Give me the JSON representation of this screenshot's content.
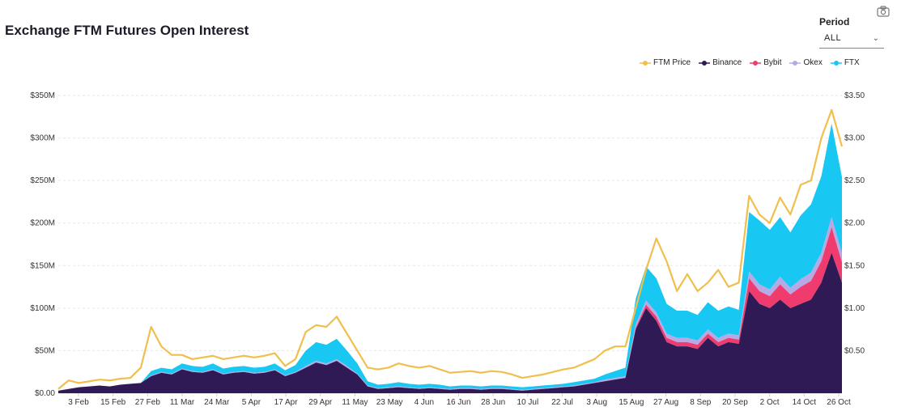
{
  "header": {
    "title": "Exchange FTM Futures Open Interest"
  },
  "period": {
    "label": "Period",
    "value": "ALL"
  },
  "icons": {
    "camera": "camera-icon",
    "chevron": "chevron-down-icon"
  },
  "chart_data": {
    "type": "area",
    "legend_position": "top-right",
    "grid": true,
    "x_ticks": [
      "3 Feb",
      "15 Feb",
      "27 Feb",
      "11 Mar",
      "24 Mar",
      "5 Apr",
      "17 Apr",
      "29 Apr",
      "11 May",
      "23 May",
      "4 Jun",
      "16 Jun",
      "28 Jun",
      "10 Jul",
      "22 Jul",
      "3 Aug",
      "15 Aug",
      "27 Aug",
      "8 Sep",
      "20 Sep",
      "2 Oct",
      "14 Oct",
      "26 Oct"
    ],
    "y_left_ticks": [
      "$0.00",
      "$50M",
      "$100M",
      "$150M",
      "$200M",
      "$250M",
      "$300M",
      "$350M"
    ],
    "y_right_ticks": [
      "$0.50",
      "$1.00",
      "$1.50",
      "$2.00",
      "$2.50",
      "$3.00",
      "$3.50"
    ],
    "y_left_range": [
      0,
      350
    ],
    "y_right_range": [
      0,
      3.5
    ],
    "x": [
      "Jan 24",
      "Jan 27",
      "Jan 30",
      "Feb 3",
      "Feb 7",
      "Feb 11",
      "Feb 15",
      "Feb 19",
      "Feb 23",
      "Feb 27",
      "Mar 3",
      "Mar 7",
      "Mar 11",
      "Mar 15",
      "Mar 19",
      "Mar 24",
      "Mar 28",
      "Apr 1",
      "Apr 5",
      "Apr 9",
      "Apr 13",
      "Apr 17",
      "Apr 21",
      "Apr 25",
      "Apr 29",
      "May 3",
      "May 7",
      "May 11",
      "May 15",
      "May 19",
      "May 23",
      "May 27",
      "May 31",
      "Jun 4",
      "Jun 8",
      "Jun 12",
      "Jun 16",
      "Jun 20",
      "Jun 24",
      "Jun 28",
      "Jul 2",
      "Jul 6",
      "Jul 10",
      "Jul 14",
      "Jul 18",
      "Jul 22",
      "Jul 26",
      "Jul 30",
      "Aug 3",
      "Aug 7",
      "Aug 11",
      "Aug 15",
      "Aug 19",
      "Aug 23",
      "Aug 27",
      "Aug 30",
      "Sep 2",
      "Sep 5",
      "Sep 8",
      "Sep 11",
      "Sep 14",
      "Sep 17",
      "Sep 20",
      "Sep 23",
      "Sep 26",
      "Sep 29",
      "Oct 2",
      "Oct 4",
      "Oct 7",
      "Oct 10",
      "Oct 14",
      "Oct 17",
      "Oct 20",
      "Oct 23",
      "Oct 26",
      "Oct 28",
      "Oct 29"
    ],
    "series": [
      {
        "name": "FTM Price",
        "kind": "line",
        "axis": "right",
        "color": "#f0bf4c",
        "values": [
          0.05,
          0.15,
          0.12,
          0.14,
          0.16,
          0.15,
          0.17,
          0.18,
          0.3,
          0.78,
          0.55,
          0.45,
          0.45,
          0.4,
          0.42,
          0.44,
          0.4,
          0.42,
          0.44,
          0.42,
          0.44,
          0.47,
          0.32,
          0.4,
          0.72,
          0.8,
          0.78,
          0.9,
          0.7,
          0.5,
          0.3,
          0.28,
          0.3,
          0.35,
          0.32,
          0.3,
          0.32,
          0.28,
          0.24,
          0.25,
          0.26,
          0.24,
          0.26,
          0.25,
          0.22,
          0.18,
          0.2,
          0.22,
          0.25,
          0.28,
          0.3,
          0.35,
          0.4,
          0.5,
          0.55,
          0.55,
          1.0,
          1.45,
          1.82,
          1.55,
          1.2,
          1.4,
          1.2,
          1.3,
          1.45,
          1.25,
          1.3,
          2.32,
          2.1,
          2.0,
          2.3,
          2.1,
          2.45,
          2.5,
          3.0,
          3.33,
          2.9
        ]
      },
      {
        "name": "Binance",
        "kind": "area",
        "axis": "left",
        "color": "#2f1a55",
        "values": [
          3,
          5,
          7,
          8,
          9,
          8,
          10,
          11,
          12,
          20,
          24,
          22,
          28,
          25,
          24,
          27,
          22,
          24,
          25,
          23,
          24,
          27,
          20,
          24,
          30,
          36,
          33,
          38,
          30,
          22,
          8,
          5,
          6,
          7,
          6,
          5,
          6,
          5,
          4,
          5,
          5,
          4,
          5,
          5,
          4,
          3,
          4,
          5,
          6,
          7,
          8,
          10,
          12,
          14,
          16,
          18,
          75,
          100,
          85,
          60,
          55,
          55,
          52,
          65,
          55,
          60,
          58,
          120,
          105,
          100,
          110,
          100,
          105,
          110,
          130,
          165,
          130
        ]
      },
      {
        "name": "Bybit",
        "kind": "area",
        "axis": "left",
        "color": "#ef3b6e",
        "values": [
          0,
          0,
          0,
          0,
          0,
          0,
          0,
          0,
          0,
          0,
          0,
          0,
          0,
          0,
          0,
          0,
          0,
          0,
          0,
          0,
          0,
          0,
          0,
          0,
          0,
          0,
          0,
          0,
          0,
          0,
          0,
          0,
          0,
          0,
          0,
          0,
          0,
          0,
          0,
          0,
          0,
          0,
          0,
          0,
          0,
          0,
          0,
          0,
          0,
          0,
          0,
          0,
          0,
          0,
          0,
          0,
          2,
          4,
          5,
          5,
          5,
          5,
          5,
          5,
          5,
          5,
          5,
          15,
          15,
          14,
          18,
          16,
          20,
          22,
          25,
          30,
          24
        ]
      },
      {
        "name": "Okex",
        "kind": "area",
        "axis": "left",
        "color": "#b7a9e6",
        "values": [
          0,
          0,
          0,
          0,
          0,
          0,
          0,
          0,
          0,
          1,
          1,
          1,
          1,
          1,
          1,
          1,
          1,
          1,
          1,
          1,
          1,
          1,
          1,
          1,
          2,
          2,
          2,
          2,
          2,
          1,
          1,
          1,
          1,
          1,
          1,
          1,
          1,
          1,
          1,
          1,
          1,
          1,
          1,
          1,
          1,
          1,
          1,
          1,
          1,
          1,
          1,
          1,
          1,
          2,
          2,
          2,
          4,
          5,
          5,
          5,
          5,
          5,
          5,
          5,
          5,
          5,
          5,
          8,
          8,
          8,
          9,
          8,
          9,
          10,
          10,
          12,
          10
        ]
      },
      {
        "name": "FTX",
        "kind": "area",
        "axis": "left",
        "color": "#18c7f2",
        "values": [
          0,
          0,
          0,
          0,
          0,
          0,
          0,
          0,
          0,
          5,
          5,
          5,
          6,
          6,
          6,
          7,
          6,
          6,
          6,
          6,
          6,
          7,
          6,
          8,
          18,
          22,
          22,
          24,
          18,
          12,
          5,
          4,
          4,
          5,
          4,
          4,
          4,
          4,
          3,
          3,
          3,
          3,
          3,
          3,
          3,
          3,
          3,
          3,
          3,
          3,
          4,
          4,
          4,
          6,
          8,
          10,
          30,
          40,
          40,
          35,
          32,
          32,
          30,
          32,
          32,
          32,
          30,
          70,
          75,
          70,
          70,
          65,
          75,
          80,
          90,
          110,
          90
        ]
      }
    ]
  }
}
